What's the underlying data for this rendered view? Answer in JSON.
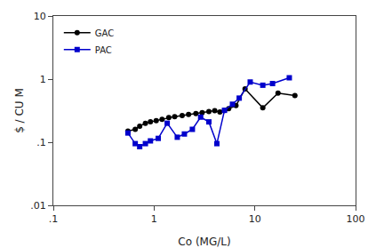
{
  "chart_data": {
    "type": "line",
    "xlabel": "Co (MG/L)",
    "ylabel": "$ / CU M",
    "log": true,
    "grid": false,
    "legend": "upper left",
    "xlim": [
      0.1,
      100
    ],
    "ylim": [
      0.01,
      10
    ],
    "xticks": [
      {
        "value": 0.1,
        "label": ".1"
      },
      1,
      10,
      100
    ],
    "yticks": [
      {
        "value": 0.01,
        "label": ".01"
      },
      {
        "value": 0.1,
        "label": ".1"
      },
      1,
      10
    ],
    "series": [
      {
        "name": "GAC",
        "color": "#000000",
        "marker": "circle",
        "x": [
          0.55,
          0.65,
          0.72,
          0.82,
          0.92,
          1.05,
          1.2,
          1.4,
          1.6,
          1.9,
          2.2,
          2.6,
          3.0,
          3.5,
          4.0,
          4.5,
          5.0,
          5.5,
          6.5,
          8.0,
          12.0,
          17.0,
          25.0
        ],
        "values": [
          0.15,
          0.16,
          0.18,
          0.2,
          0.21,
          0.22,
          0.23,
          0.245,
          0.255,
          0.265,
          0.275,
          0.285,
          0.295,
          0.305,
          0.315,
          0.3,
          0.32,
          0.34,
          0.38,
          0.7,
          0.35,
          0.6,
          0.55
        ]
      },
      {
        "name": "PAC",
        "color": "#0000cc",
        "marker": "square",
        "x": [
          0.55,
          0.65,
          0.72,
          0.82,
          0.92,
          1.1,
          1.35,
          1.7,
          2.0,
          2.4,
          2.9,
          3.5,
          4.2,
          5.0,
          6.0,
          7.0,
          9.0,
          12.0,
          15.0,
          22.0
        ],
        "values": [
          0.14,
          0.095,
          0.085,
          0.095,
          0.105,
          0.115,
          0.2,
          0.12,
          0.135,
          0.16,
          0.25,
          0.21,
          0.095,
          0.32,
          0.4,
          0.5,
          0.9,
          0.8,
          0.85,
          1.05
        ]
      }
    ]
  }
}
